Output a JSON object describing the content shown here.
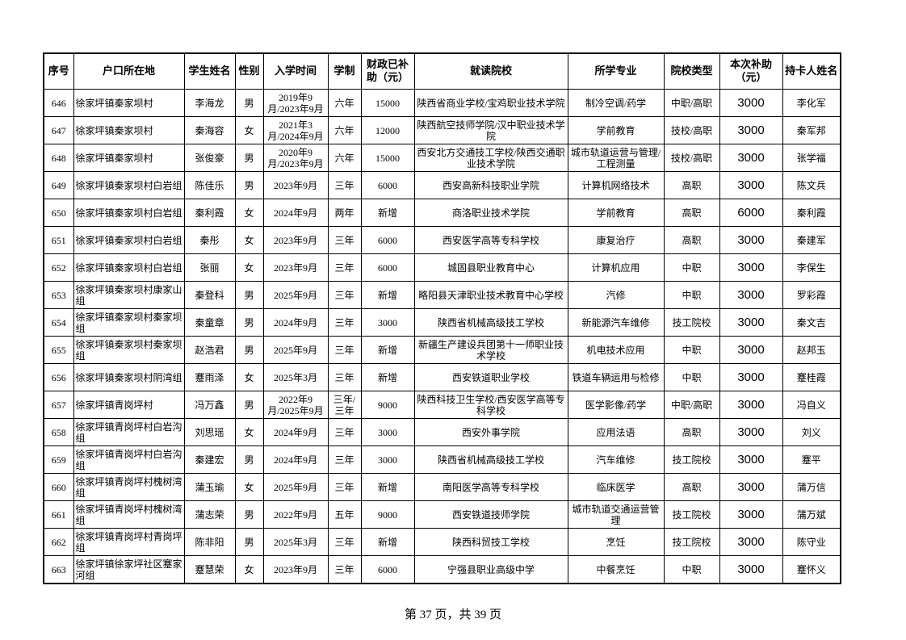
{
  "headers": [
    "序号",
    "户口所在地",
    "学生姓名",
    "性别",
    "入学时间",
    "学制",
    "财政已补助（元）",
    "就读院校",
    "所学专业",
    "院校类型",
    "本次补助（元）",
    "持卡人姓名"
  ],
  "rows": [
    [
      "646",
      "徐家坪镇秦家坝村",
      "李海龙",
      "男",
      "2019年9月/2023年9月",
      "六年",
      "15000",
      "陕西省商业学校/宝鸡职业技术学院",
      "制冷空调/药学",
      "中职/高职",
      "3000",
      "李化军"
    ],
    [
      "647",
      "徐家坪镇秦家坝村",
      "秦海容",
      "女",
      "2021年3月/2024年9月",
      "六年",
      "12000",
      "陕西航空技师学院/汉中职业技术学院",
      "学前教育",
      "技校/高职",
      "3000",
      "秦军邦"
    ],
    [
      "648",
      "徐家坪镇秦家坝村",
      "张俊豪",
      "男",
      "2020年9月/2023年9月",
      "六年",
      "15000",
      "西安北方交通技工学校/陕西交通职业技术学院",
      "城市轨道运营与管理/工程测量",
      "技校/高职",
      "3000",
      "张学福"
    ],
    [
      "649",
      "徐家坪镇秦家坝村白岩组",
      "陈佳乐",
      "男",
      "2023年9月",
      "三年",
      "6000",
      "西安高新科技职业学院",
      "计算机网络技术",
      "高职",
      "3000",
      "陈文兵"
    ],
    [
      "650",
      "徐家坪镇秦家坝村白岩组",
      "秦利霞",
      "女",
      "2024年9月",
      "两年",
      "新增",
      "商洛职业技术学院",
      "学前教育",
      "高职",
      "6000",
      "秦利霞"
    ],
    [
      "651",
      "徐家坪镇秦家坝村白岩组",
      "秦彤",
      "女",
      "2023年9月",
      "三年",
      "6000",
      "西安医学高等专科学校",
      "康复治疗",
      "高职",
      "3000",
      "秦建军"
    ],
    [
      "652",
      "徐家坪镇秦家坝村白岩组",
      "张丽",
      "女",
      "2023年9月",
      "三年",
      "6000",
      "城固县职业教育中心",
      "计算机应用",
      "中职",
      "3000",
      "李保生"
    ],
    [
      "653",
      "徐家坪镇秦家坝村康家山组",
      "秦登科",
      "男",
      "2025年9月",
      "三年",
      "新增",
      "略阳县天津职业技术教育中心学校",
      "汽修",
      "中职",
      "3000",
      "罗彩霞"
    ],
    [
      "654",
      "徐家坪镇秦家坝村秦家坝组",
      "秦童章",
      "男",
      "2024年9月",
      "三年",
      "3000",
      "陕西省机械高级技工学校",
      "新能源汽车维修",
      "技工院校",
      "3000",
      "秦文吉"
    ],
    [
      "655",
      "徐家坪镇秦家坝村秦家坝组",
      "赵浩君",
      "男",
      "2025年9月",
      "三年",
      "新增",
      "新疆生产建设兵团第十一师职业技术学校",
      "机电技术应用",
      "中职",
      "3000",
      "赵邦玉"
    ],
    [
      "656",
      "徐家坪镇秦家坝村阴湾组",
      "蹇雨泽",
      "女",
      "2025年3月",
      "三年",
      "新增",
      "西安铁道职业学校",
      "铁道车辆运用与检修",
      "中职",
      "3000",
      "蹇桂霞"
    ],
    [
      "657",
      "徐家坪镇青岗坪村",
      "冯万鑫",
      "男",
      "2022年9月/2025年9月",
      "三年/三年",
      "9000",
      "陕西科技卫生学校/西安医学高等专科学校",
      "医学影像/药学",
      "中职/高职",
      "3000",
      "冯自义"
    ],
    [
      "658",
      "徐家坪镇青岗坪村白岩沟组",
      "刘思瑶",
      "女",
      "2024年9月",
      "三年",
      "3000",
      "西安外事学院",
      "应用法语",
      "高职",
      "3000",
      "刘义"
    ],
    [
      "659",
      "徐家坪镇青岗坪村白岩沟组",
      "秦建宏",
      "男",
      "2024年9月",
      "三年",
      "3000",
      "陕西省机械高级技工学校",
      "汽车维修",
      "技工院校",
      "3000",
      "蹇平"
    ],
    [
      "660",
      "徐家坪镇青岗坪村槐树湾组",
      "蒲玉瑜",
      "女",
      "2025年9月",
      "三年",
      "新增",
      "南阳医学高等专科学校",
      "临床医学",
      "高职",
      "3000",
      "蒲万信"
    ],
    [
      "661",
      "徐家坪镇青岗坪村槐树湾组",
      "蒲志荣",
      "男",
      "2022年9月",
      "五年",
      "9000",
      "西安铁道技师学院",
      "城市轨道交通运营管理",
      "技工院校",
      "3000",
      "蒲万斌"
    ],
    [
      "662",
      "徐家坪镇青岗坪村青岗坪组",
      "陈非阳",
      "男",
      "2025年3月",
      "三年",
      "新增",
      "陕西科贸技工学校",
      "烹饪",
      "技工院校",
      "3000",
      "陈守业"
    ],
    [
      "663",
      "徐家坪镇徐家坪社区蹇家河组",
      "蹇慧荣",
      "女",
      "2023年9月",
      "三年",
      "6000",
      "宁强县职业高级中学",
      "中餐烹饪",
      "中职",
      "3000",
      "蹇怀义"
    ]
  ],
  "footer": "第 37 页，共 39 页"
}
